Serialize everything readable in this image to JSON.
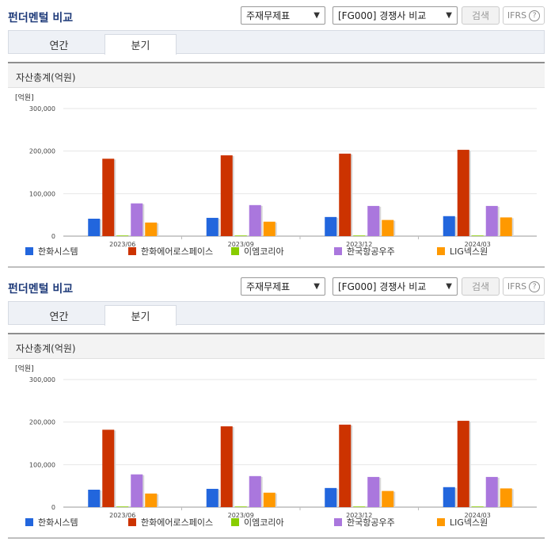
{
  "panels": [
    {
      "title": "펀더멘털 비교",
      "select_type": "주재무제표",
      "select_group": "[FG000] 경쟁사 비교",
      "search_label": "검색",
      "ifrs_label": "IFRS",
      "help_glyph": "?",
      "tabs": [
        "연간",
        "분기"
      ],
      "active_tab": "분기",
      "chart_title": "자산총계(억원)",
      "unit_label": "[억원]"
    },
    {
      "title": "펀더멘털 비교",
      "select_type": "주재무제표",
      "select_group": "[FG000] 경쟁사 비교",
      "search_label": "검색",
      "ifrs_label": "IFRS",
      "help_glyph": "?",
      "tabs": [
        "연간",
        "분기"
      ],
      "active_tab": "분기",
      "chart_title": "자산총계(억원)",
      "unit_label": "[억원]"
    }
  ],
  "chart_data": [
    {
      "type": "bar",
      "title": "자산총계(억원)",
      "ylabel": "[억원]",
      "ylim": [
        0,
        300000
      ],
      "yticks": [
        0,
        100000,
        200000,
        300000
      ],
      "ytick_labels": [
        "0",
        "100,000",
        "200,000",
        "300,000"
      ],
      "categories": [
        "2023/06",
        "2023/09",
        "2023/12",
        "2024/03"
      ],
      "grid": true,
      "legend_position": "bottom",
      "series": [
        {
          "name": "한화시스템",
          "color": "#2266dd",
          "values": [
            41000,
            43000,
            45000,
            47000
          ]
        },
        {
          "name": "한화에어로스페이스",
          "color": "#cc3300",
          "values": [
            182000,
            190000,
            194000,
            203000
          ]
        },
        {
          "name": "이엠코리아",
          "color": "#88cc00",
          "values": [
            1500,
            1500,
            1500,
            1500
          ]
        },
        {
          "name": "한국항공우주",
          "color": "#aa77dd",
          "values": [
            77000,
            73000,
            71000,
            71000
          ]
        },
        {
          "name": "LIG넥스원",
          "color": "#ff9900",
          "values": [
            32000,
            34000,
            38000,
            44000
          ]
        }
      ]
    },
    {
      "type": "bar",
      "title": "자산총계(억원)",
      "ylabel": "[억원]",
      "ylim": [
        0,
        300000
      ],
      "yticks": [
        0,
        100000,
        200000,
        300000
      ],
      "ytick_labels": [
        "0",
        "100,000",
        "200,000",
        "300,000"
      ],
      "categories": [
        "2023/06",
        "2023/09",
        "2023/12",
        "2024/03"
      ],
      "grid": true,
      "legend_position": "bottom",
      "series": [
        {
          "name": "한화시스템",
          "color": "#2266dd",
          "values": [
            41000,
            43000,
            45000,
            47000
          ]
        },
        {
          "name": "한화에어로스페이스",
          "color": "#cc3300",
          "values": [
            182000,
            190000,
            194000,
            203000
          ]
        },
        {
          "name": "이엠코리아",
          "color": "#88cc00",
          "values": [
            1500,
            1500,
            1500,
            1500
          ]
        },
        {
          "name": "한국항공우주",
          "color": "#aa77dd",
          "values": [
            77000,
            73000,
            71000,
            71000
          ]
        },
        {
          "name": "LIG넥스원",
          "color": "#ff9900",
          "values": [
            32000,
            34000,
            38000,
            44000
          ]
        }
      ]
    }
  ]
}
